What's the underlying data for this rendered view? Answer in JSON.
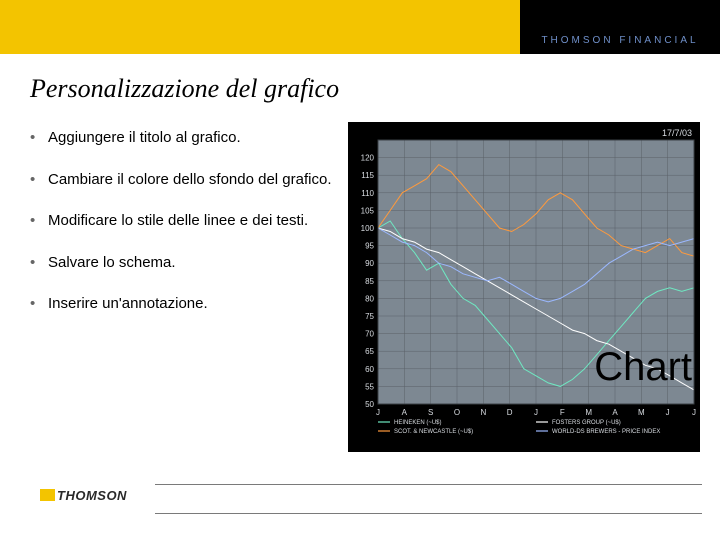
{
  "brand": {
    "header_text": "THOMSON FINANCIAL",
    "header_text_color": "#6f8fc9",
    "accent_yellow": "#f3c400",
    "footer_logo": "THOMSON",
    "footer_logo_color": "#2a2a2a",
    "footer_badge_color": "#f3c400"
  },
  "slide": {
    "title": "Personalizzazione del grafico",
    "bullets": [
      "Aggiungere il titolo al grafico.",
      "Cambiare il colore dello sfondo del grafico.",
      "Modificare lo stile delle linee e dei testi.",
      "Salvare lo schema.",
      "Inserire un'annotazione."
    ]
  },
  "chart": {
    "type": "line",
    "background_color": "#000000",
    "plot_background": "#7d8892",
    "grid_color": "#5a6068",
    "axis_text_color": "#d9dde2",
    "date_stamp": "17/7/03",
    "overlay_title": "Chart",
    "overlay_fontsize": 40,
    "ylim": [
      50,
      125
    ],
    "yticks": [
      50,
      55,
      60,
      65,
      70,
      75,
      80,
      85,
      90,
      95,
      100,
      105,
      110,
      115,
      120
    ],
    "x_months": [
      "J",
      "A",
      "S",
      "O",
      "N",
      "D",
      "J",
      "F",
      "M",
      "A",
      "M",
      "J",
      "J"
    ],
    "series": [
      {
        "name": "HEINEKEN (~U$)",
        "color": "#6fe8c2",
        "width": 1,
        "data": [
          100,
          102,
          97,
          93,
          88,
          90,
          84,
          80,
          78,
          74,
          70,
          66,
          60,
          58,
          56,
          55,
          57,
          60,
          64,
          68,
          72,
          76,
          80,
          82,
          83,
          82,
          83
        ]
      },
      {
        "name": "SCOT & NEWCASTLE (~U$)",
        "color": "#ff9a3c",
        "width": 1,
        "data": [
          100,
          105,
          110,
          112,
          114,
          118,
          116,
          112,
          108,
          104,
          100,
          99,
          101,
          104,
          108,
          110,
          108,
          104,
          100,
          98,
          95,
          94,
          93,
          95,
          97,
          93,
          92
        ]
      },
      {
        "name": "FOSTERS GROUP (~U$)",
        "color": "#ffffff",
        "width": 1,
        "data": [
          100,
          99,
          97,
          96,
          94,
          93,
          91,
          89,
          87,
          85,
          83,
          81,
          79,
          77,
          75,
          73,
          71,
          70,
          68,
          67,
          65,
          63,
          61,
          60,
          58,
          56,
          54
        ]
      },
      {
        "name": "WORLD-DS BREWERS - PRICE INDEX",
        "color": "#9bb8ff",
        "width": 1,
        "data": [
          100,
          98,
          96,
          95,
          93,
          90,
          89,
          87,
          86,
          85,
          86,
          84,
          82,
          80,
          79,
          80,
          82,
          84,
          87,
          90,
          92,
          94,
          95,
          96,
          95,
          96,
          97
        ]
      }
    ],
    "legend": {
      "items": [
        {
          "label": "HEINEKEN (~U$)",
          "color": "#6fe8c2"
        },
        {
          "label": "FOSTERS GROUP (~U$)",
          "color": "#ffffff"
        },
        {
          "label": "SCOT. & NEWCASTLE (~U$)",
          "color": "#ff9a3c"
        },
        {
          "label": "WORLD-DS BREWERS - PRICE INDEX",
          "color": "#9bb8ff"
        }
      ],
      "fontsize": 6
    }
  }
}
